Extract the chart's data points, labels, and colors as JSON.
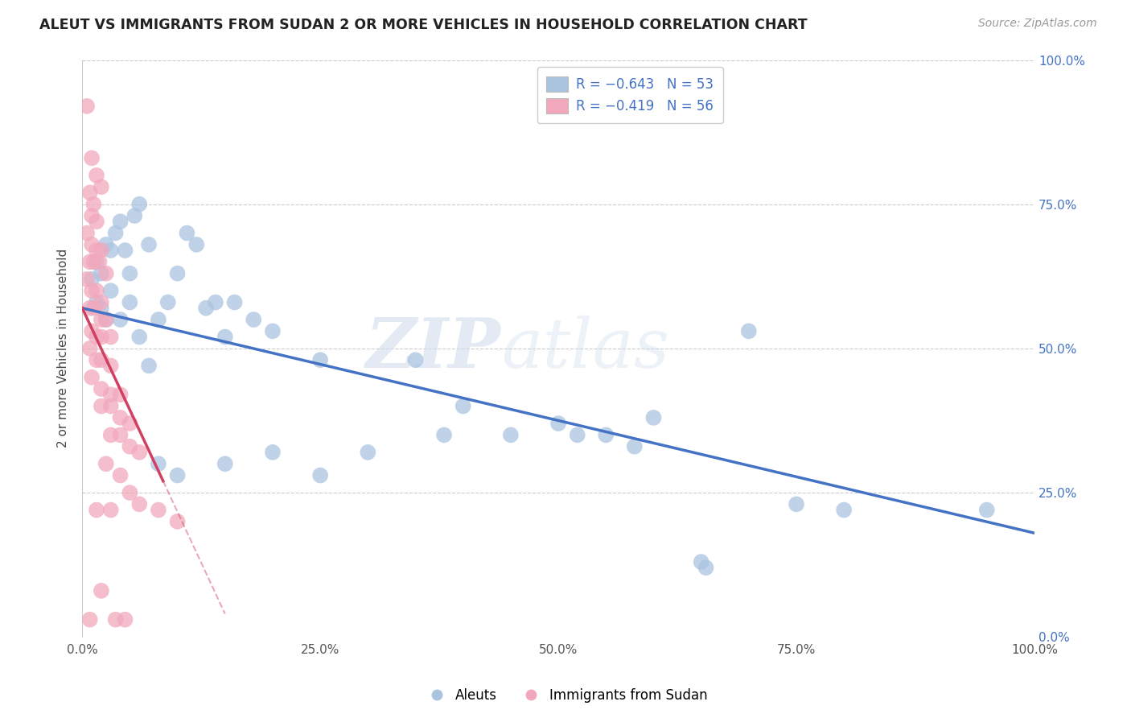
{
  "title": "ALEUT VS IMMIGRANTS FROM SUDAN 2 OR MORE VEHICLES IN HOUSEHOLD CORRELATION CHART",
  "source": "Source: ZipAtlas.com",
  "ylabel": "2 or more Vehicles in Household",
  "legend_blue_R": "R = −0.643",
  "legend_blue_N": "N = 53",
  "legend_pink_R": "R = −0.419",
  "legend_pink_N": "N = 56",
  "legend_label_blue": "Aleuts",
  "legend_label_pink": "Immigrants from Sudan",
  "watermark": "ZIPatlas",
  "blue_color": "#aac4e0",
  "pink_color": "#f2a8bc",
  "blue_line_color": "#4472c4",
  "pink_line_color": "#d04060",
  "blue_scatter": [
    [
      1.0,
      62.0
    ],
    [
      1.5,
      65.0
    ],
    [
      2.0,
      63.0
    ],
    [
      2.5,
      68.0
    ],
    [
      3.0,
      67.0
    ],
    [
      3.5,
      70.0
    ],
    [
      4.0,
      72.0
    ],
    [
      4.5,
      67.0
    ],
    [
      5.0,
      63.0
    ],
    [
      5.5,
      73.0
    ],
    [
      6.0,
      75.0
    ],
    [
      7.0,
      68.0
    ],
    [
      8.0,
      55.0
    ],
    [
      9.0,
      58.0
    ],
    [
      10.0,
      63.0
    ],
    [
      11.0,
      70.0
    ],
    [
      12.0,
      68.0
    ],
    [
      13.0,
      57.0
    ],
    [
      14.0,
      58.0
    ],
    [
      15.0,
      52.0
    ],
    [
      16.0,
      58.0
    ],
    [
      2.0,
      57.0
    ],
    [
      3.0,
      60.0
    ],
    [
      4.0,
      55.0
    ],
    [
      5.0,
      58.0
    ],
    [
      1.5,
      58.0
    ],
    [
      2.5,
      55.0
    ],
    [
      6.0,
      52.0
    ],
    [
      7.0,
      47.0
    ],
    [
      18.0,
      55.0
    ],
    [
      20.0,
      53.0
    ],
    [
      25.0,
      48.0
    ],
    [
      8.0,
      30.0
    ],
    [
      10.0,
      28.0
    ],
    [
      15.0,
      30.0
    ],
    [
      20.0,
      32.0
    ],
    [
      25.0,
      28.0
    ],
    [
      30.0,
      32.0
    ],
    [
      35.0,
      48.0
    ],
    [
      38.0,
      35.0
    ],
    [
      40.0,
      40.0
    ],
    [
      45.0,
      35.0
    ],
    [
      50.0,
      37.0
    ],
    [
      52.0,
      35.0
    ],
    [
      55.0,
      35.0
    ],
    [
      58.0,
      33.0
    ],
    [
      60.0,
      38.0
    ],
    [
      65.0,
      13.0
    ],
    [
      65.5,
      12.0
    ],
    [
      70.0,
      53.0
    ],
    [
      75.0,
      23.0
    ],
    [
      80.0,
      22.0
    ],
    [
      95.0,
      22.0
    ]
  ],
  "pink_scatter": [
    [
      0.5,
      92.0
    ],
    [
      1.0,
      83.0
    ],
    [
      1.5,
      80.0
    ],
    [
      2.0,
      78.0
    ],
    [
      0.8,
      77.0
    ],
    [
      1.2,
      75.0
    ],
    [
      1.0,
      73.0
    ],
    [
      1.5,
      72.0
    ],
    [
      0.5,
      70.0
    ],
    [
      1.0,
      68.0
    ],
    [
      1.5,
      67.0
    ],
    [
      2.0,
      67.0
    ],
    [
      0.8,
      65.0
    ],
    [
      1.2,
      65.0
    ],
    [
      1.8,
      65.0
    ],
    [
      2.5,
      63.0
    ],
    [
      0.5,
      62.0
    ],
    [
      1.0,
      60.0
    ],
    [
      1.5,
      60.0
    ],
    [
      2.0,
      58.0
    ],
    [
      0.8,
      57.0
    ],
    [
      1.2,
      57.0
    ],
    [
      2.0,
      55.0
    ],
    [
      2.5,
      55.0
    ],
    [
      1.0,
      53.0
    ],
    [
      1.5,
      52.0
    ],
    [
      2.0,
      52.0
    ],
    [
      3.0,
      52.0
    ],
    [
      0.8,
      50.0
    ],
    [
      1.5,
      48.0
    ],
    [
      2.0,
      48.0
    ],
    [
      3.0,
      47.0
    ],
    [
      1.0,
      45.0
    ],
    [
      2.0,
      43.0
    ],
    [
      3.0,
      42.0
    ],
    [
      4.0,
      42.0
    ],
    [
      2.0,
      40.0
    ],
    [
      3.0,
      40.0
    ],
    [
      4.0,
      38.0
    ],
    [
      5.0,
      37.0
    ],
    [
      3.0,
      35.0
    ],
    [
      4.0,
      35.0
    ],
    [
      5.0,
      33.0
    ],
    [
      6.0,
      32.0
    ],
    [
      2.5,
      30.0
    ],
    [
      4.0,
      28.0
    ],
    [
      5.0,
      25.0
    ],
    [
      6.0,
      23.0
    ],
    [
      1.5,
      22.0
    ],
    [
      3.0,
      22.0
    ],
    [
      8.0,
      22.0
    ],
    [
      10.0,
      20.0
    ],
    [
      2.0,
      8.0
    ],
    [
      0.8,
      3.0
    ],
    [
      3.5,
      3.0
    ],
    [
      4.5,
      3.0
    ]
  ],
  "blue_line": [
    [
      0,
      57.0
    ],
    [
      100,
      18.0
    ]
  ],
  "pink_line_solid": [
    [
      0.0,
      57.0
    ],
    [
      8.5,
      27.0
    ]
  ],
  "pink_line_dashed": [
    [
      8.5,
      27.0
    ],
    [
      15.0,
      4.0
    ]
  ],
  "xlim": [
    0,
    100
  ],
  "ylim": [
    0,
    100
  ],
  "xticks": [
    0,
    25,
    50,
    75,
    100
  ],
  "yticks": [
    0,
    25,
    50,
    75,
    100
  ],
  "xtick_labels": [
    "0.0%",
    "25.0%",
    "50.0%",
    "75.0%",
    "100.0%"
  ],
  "ytick_labels": [
    "0.0%",
    "25.0%",
    "50.0%",
    "75.0%",
    "100.0%"
  ]
}
